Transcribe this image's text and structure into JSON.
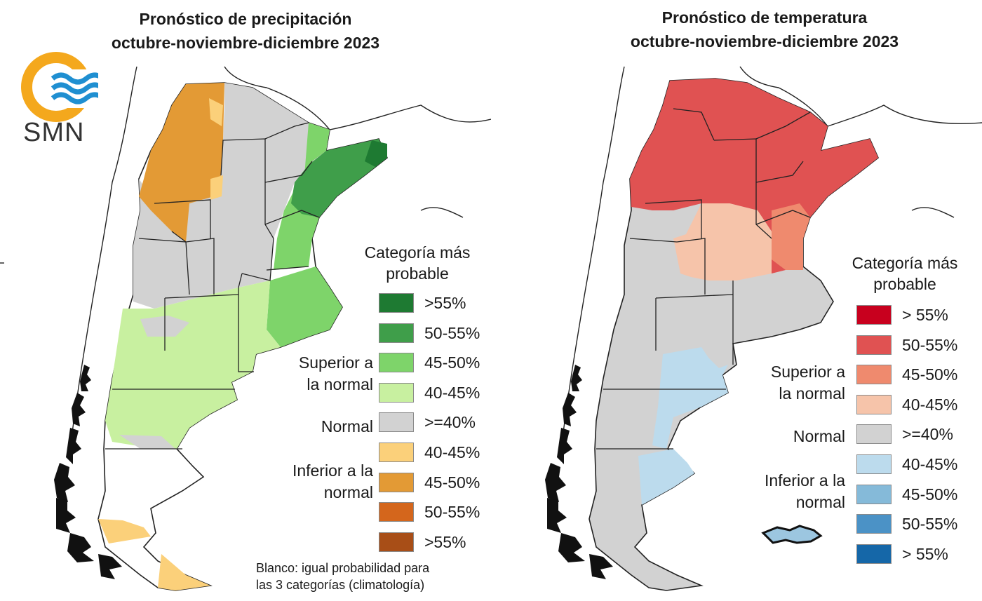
{
  "logo": {
    "text": "SMN"
  },
  "left_map": {
    "title": [
      "Pronóstico de precipitación",
      "octubre-noviembre-diciembre 2023"
    ],
    "legend_title": [
      "Categoría más",
      "probable"
    ],
    "groups": {
      "above": [
        "Superior a",
        "la normal"
      ],
      "normal": [
        "Normal"
      ],
      "below": [
        "Inferior a la",
        "normal"
      ]
    },
    "legend": [
      {
        "label": ">55%",
        "color": "#1e7a32"
      },
      {
        "label": "50-55%",
        "color": "#3f9e4a"
      },
      {
        "label": "45-50%",
        "color": "#7ed46a"
      },
      {
        "label": "40-45%",
        "color": "#c8f0a0"
      },
      {
        "label": ">=40%",
        "color": "#d2d2d2"
      },
      {
        "label": "40-45%",
        "color": "#fbd07a"
      },
      {
        "label": "45-50%",
        "color": "#e39a35"
      },
      {
        "label": "50-55%",
        "color": "#d4661c"
      },
      {
        "label": ">55%",
        "color": "#a84e17"
      }
    ],
    "note": [
      "Blanco: igual probabilidad para",
      "las 3 categorías (climatología)"
    ]
  },
  "right_map": {
    "title": [
      "Pronóstico de temperatura",
      "octubre-noviembre-diciembre 2023"
    ],
    "legend_title": [
      "Categoría más",
      "probable"
    ],
    "groups": {
      "above": [
        "Superior a",
        "la normal"
      ],
      "normal": [
        "Normal"
      ],
      "below": [
        "Inferior a la",
        "normal"
      ]
    },
    "legend": [
      {
        "label": "> 55%",
        "color": "#c8001e"
      },
      {
        "label": "50-55%",
        "color": "#e05252"
      },
      {
        "label": "45-50%",
        "color": "#ef8a6e"
      },
      {
        "label": "40-45%",
        "color": "#f6c4aa"
      },
      {
        "label": ">=40%",
        "color": "#d2d2d2"
      },
      {
        "label": "40-45%",
        "color": "#bcdbed"
      },
      {
        "label": "45-50%",
        "color": "#85bad9"
      },
      {
        "label": "50-55%",
        "color": "#4b92c6"
      },
      {
        "label": "> 55%",
        "color": "#1567a8"
      }
    ]
  }
}
